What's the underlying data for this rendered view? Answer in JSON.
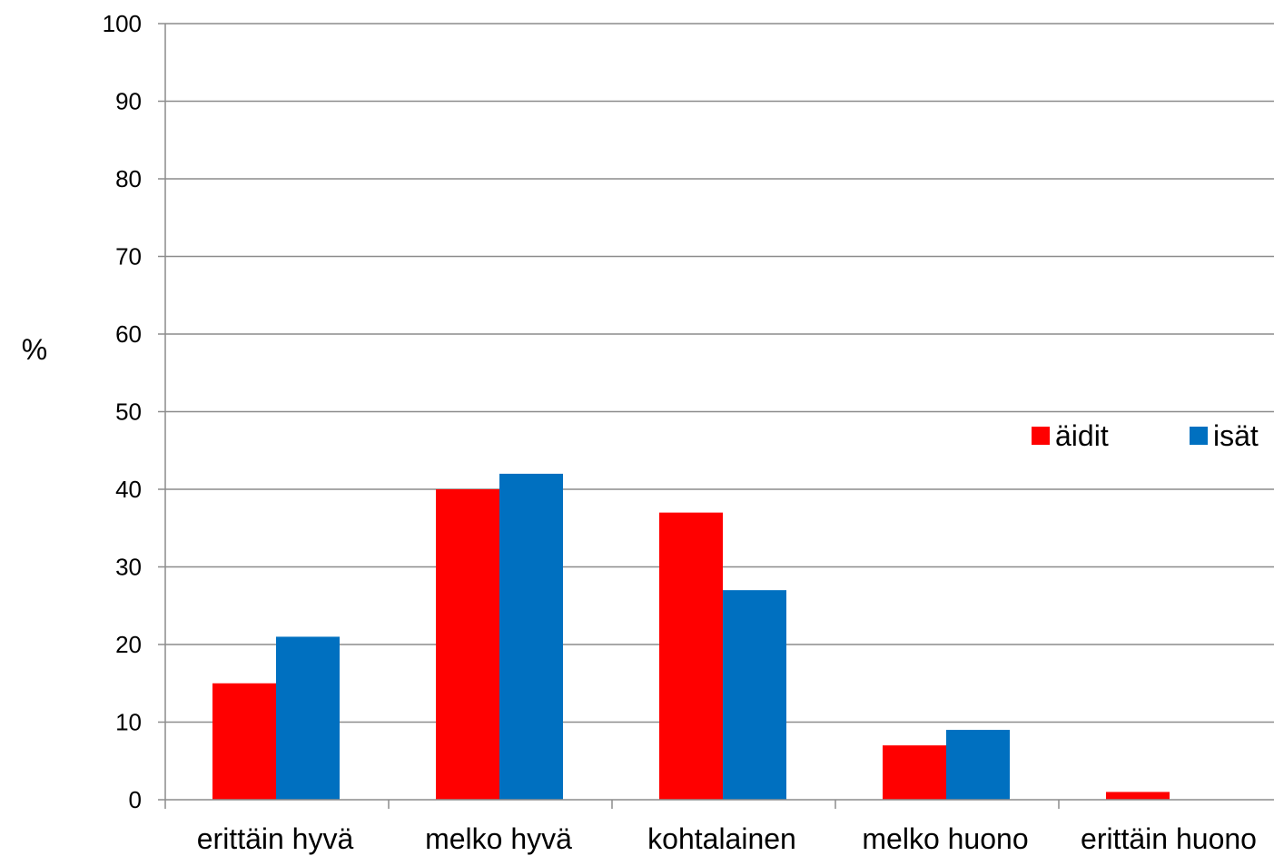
{
  "chart_data": {
    "type": "bar",
    "title": "",
    "xlabel": "",
    "ylabel": "%",
    "ylim": [
      0,
      100
    ],
    "yticks": [
      0,
      10,
      20,
      30,
      40,
      50,
      60,
      70,
      80,
      90,
      100
    ],
    "grid": true,
    "legend_position": "right",
    "categories": [
      "erittäin hyvä",
      "melko hyvä",
      "kohtalainen",
      "melko huono",
      "erittäin huono"
    ],
    "series": [
      {
        "name": "äidit",
        "color": "#ff0000",
        "values": [
          15,
          40,
          37,
          7,
          1
        ]
      },
      {
        "name": "isät",
        "color": "#0070c0",
        "values": [
          21,
          42,
          27,
          9,
          0
        ]
      }
    ]
  }
}
